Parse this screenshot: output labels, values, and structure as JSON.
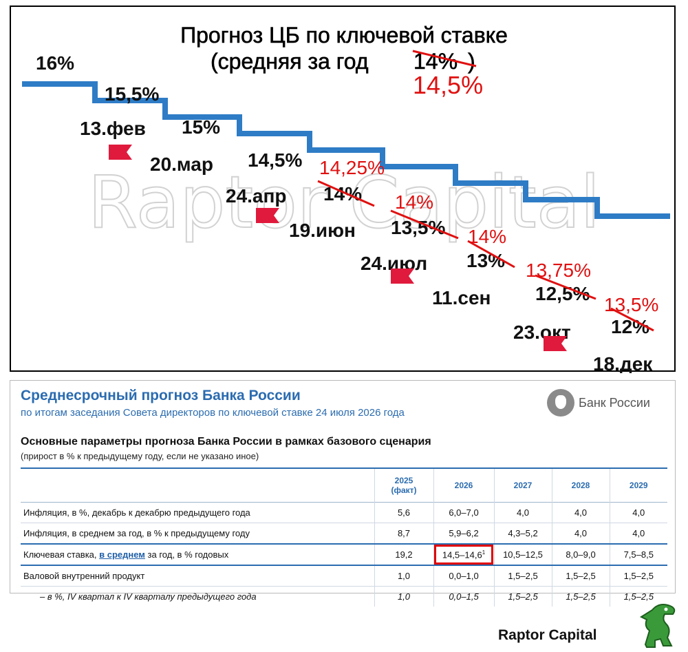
{
  "chart_data": {
    "type": "step-line",
    "title_line1": "Прогноз ЦБ по ключевой ставке",
    "title_line2": "(средняя за год",
    "title_old_value": "14%",
    "title_new_value": "14,5%",
    "watermark": "Raptor Capital",
    "start_label": "16%",
    "steps": [
      {
        "date": "13.фев",
        "value": 15.5,
        "label": "15,5%",
        "flag": true
      },
      {
        "date": "20.мар",
        "value": 15,
        "label": "15%",
        "flag": false
      },
      {
        "date": "24.апр",
        "value": 14.5,
        "label": "14,5%",
        "flag": true
      },
      {
        "date": "19.июн",
        "value": 14,
        "label": "14%",
        "new_label": "14,25%",
        "flag": false
      },
      {
        "date": "24.июл",
        "value": 13.5,
        "label": "13,5%",
        "new_label": "14%",
        "flag": true
      },
      {
        "date": "11.сен",
        "value": 13,
        "label": "13%",
        "new_label": "14%",
        "flag": false
      },
      {
        "date": "23.окт",
        "value": 12.5,
        "label": "12,5%",
        "new_label": "13,75%",
        "flag": true
      },
      {
        "date": "18.дек",
        "value": 12,
        "label": "12%",
        "new_label": "13,5%",
        "flag": false
      }
    ],
    "line_color": "#2e7cc6",
    "revision_color": "#e01010",
    "flag_color": "#e01a3c"
  },
  "table_panel": {
    "title": "Среднесрочный прогноз Банка России",
    "subtitle": "по итогам заседания Совета директоров по ключевой ставке 24 июля 2026 года",
    "brand": "Банк России",
    "heading": "Основные параметры прогноза Банка России в рамках базового сценария",
    "note": "(прирост в % к предыдущему году, если не указано иное)",
    "col_first_year": "2025",
    "col_first_sub": "(факт)",
    "columns": [
      "2026",
      "2027",
      "2028",
      "2029"
    ],
    "rows": [
      {
        "label": "Инфляция, в %, декабрь к декабрю предыдущего года",
        "values": [
          "5,6",
          "6,0–7,0",
          "4,0",
          "4,0",
          "4,0"
        ]
      },
      {
        "label": "Инфляция, в среднем за год, в % к предыдущему году",
        "values": [
          "8,7",
          "5,9–6,2",
          "4,3–5,2",
          "4,0",
          "4,0"
        ]
      },
      {
        "label_pre": "Ключевая ставка, ",
        "label_link": "в среднем",
        "label_post": " за год, в % годовых",
        "values": [
          "19,2",
          "14,5–14,6",
          "10,5–12,5",
          "8,0–9,0",
          "7,5–8,5"
        ],
        "footnote": "1"
      },
      {
        "label": "Валовой внутренний продукт",
        "values": [
          "1,0",
          "0,0–1,0",
          "1,5–2,5",
          "1,5–2,5",
          "1,5–2,5"
        ]
      },
      {
        "label": "– в %, IV квартал к IV кварталу предыдущего года",
        "values": [
          "1,0",
          "0,0–1,5",
          "1,5–2,5",
          "1,5–2,5",
          "1,5–2,5"
        ]
      }
    ]
  },
  "footer": {
    "brand": "Raptor Capital"
  },
  "colors": {
    "accent": "#2b6cb0",
    "highlight_box": "#e00000"
  }
}
